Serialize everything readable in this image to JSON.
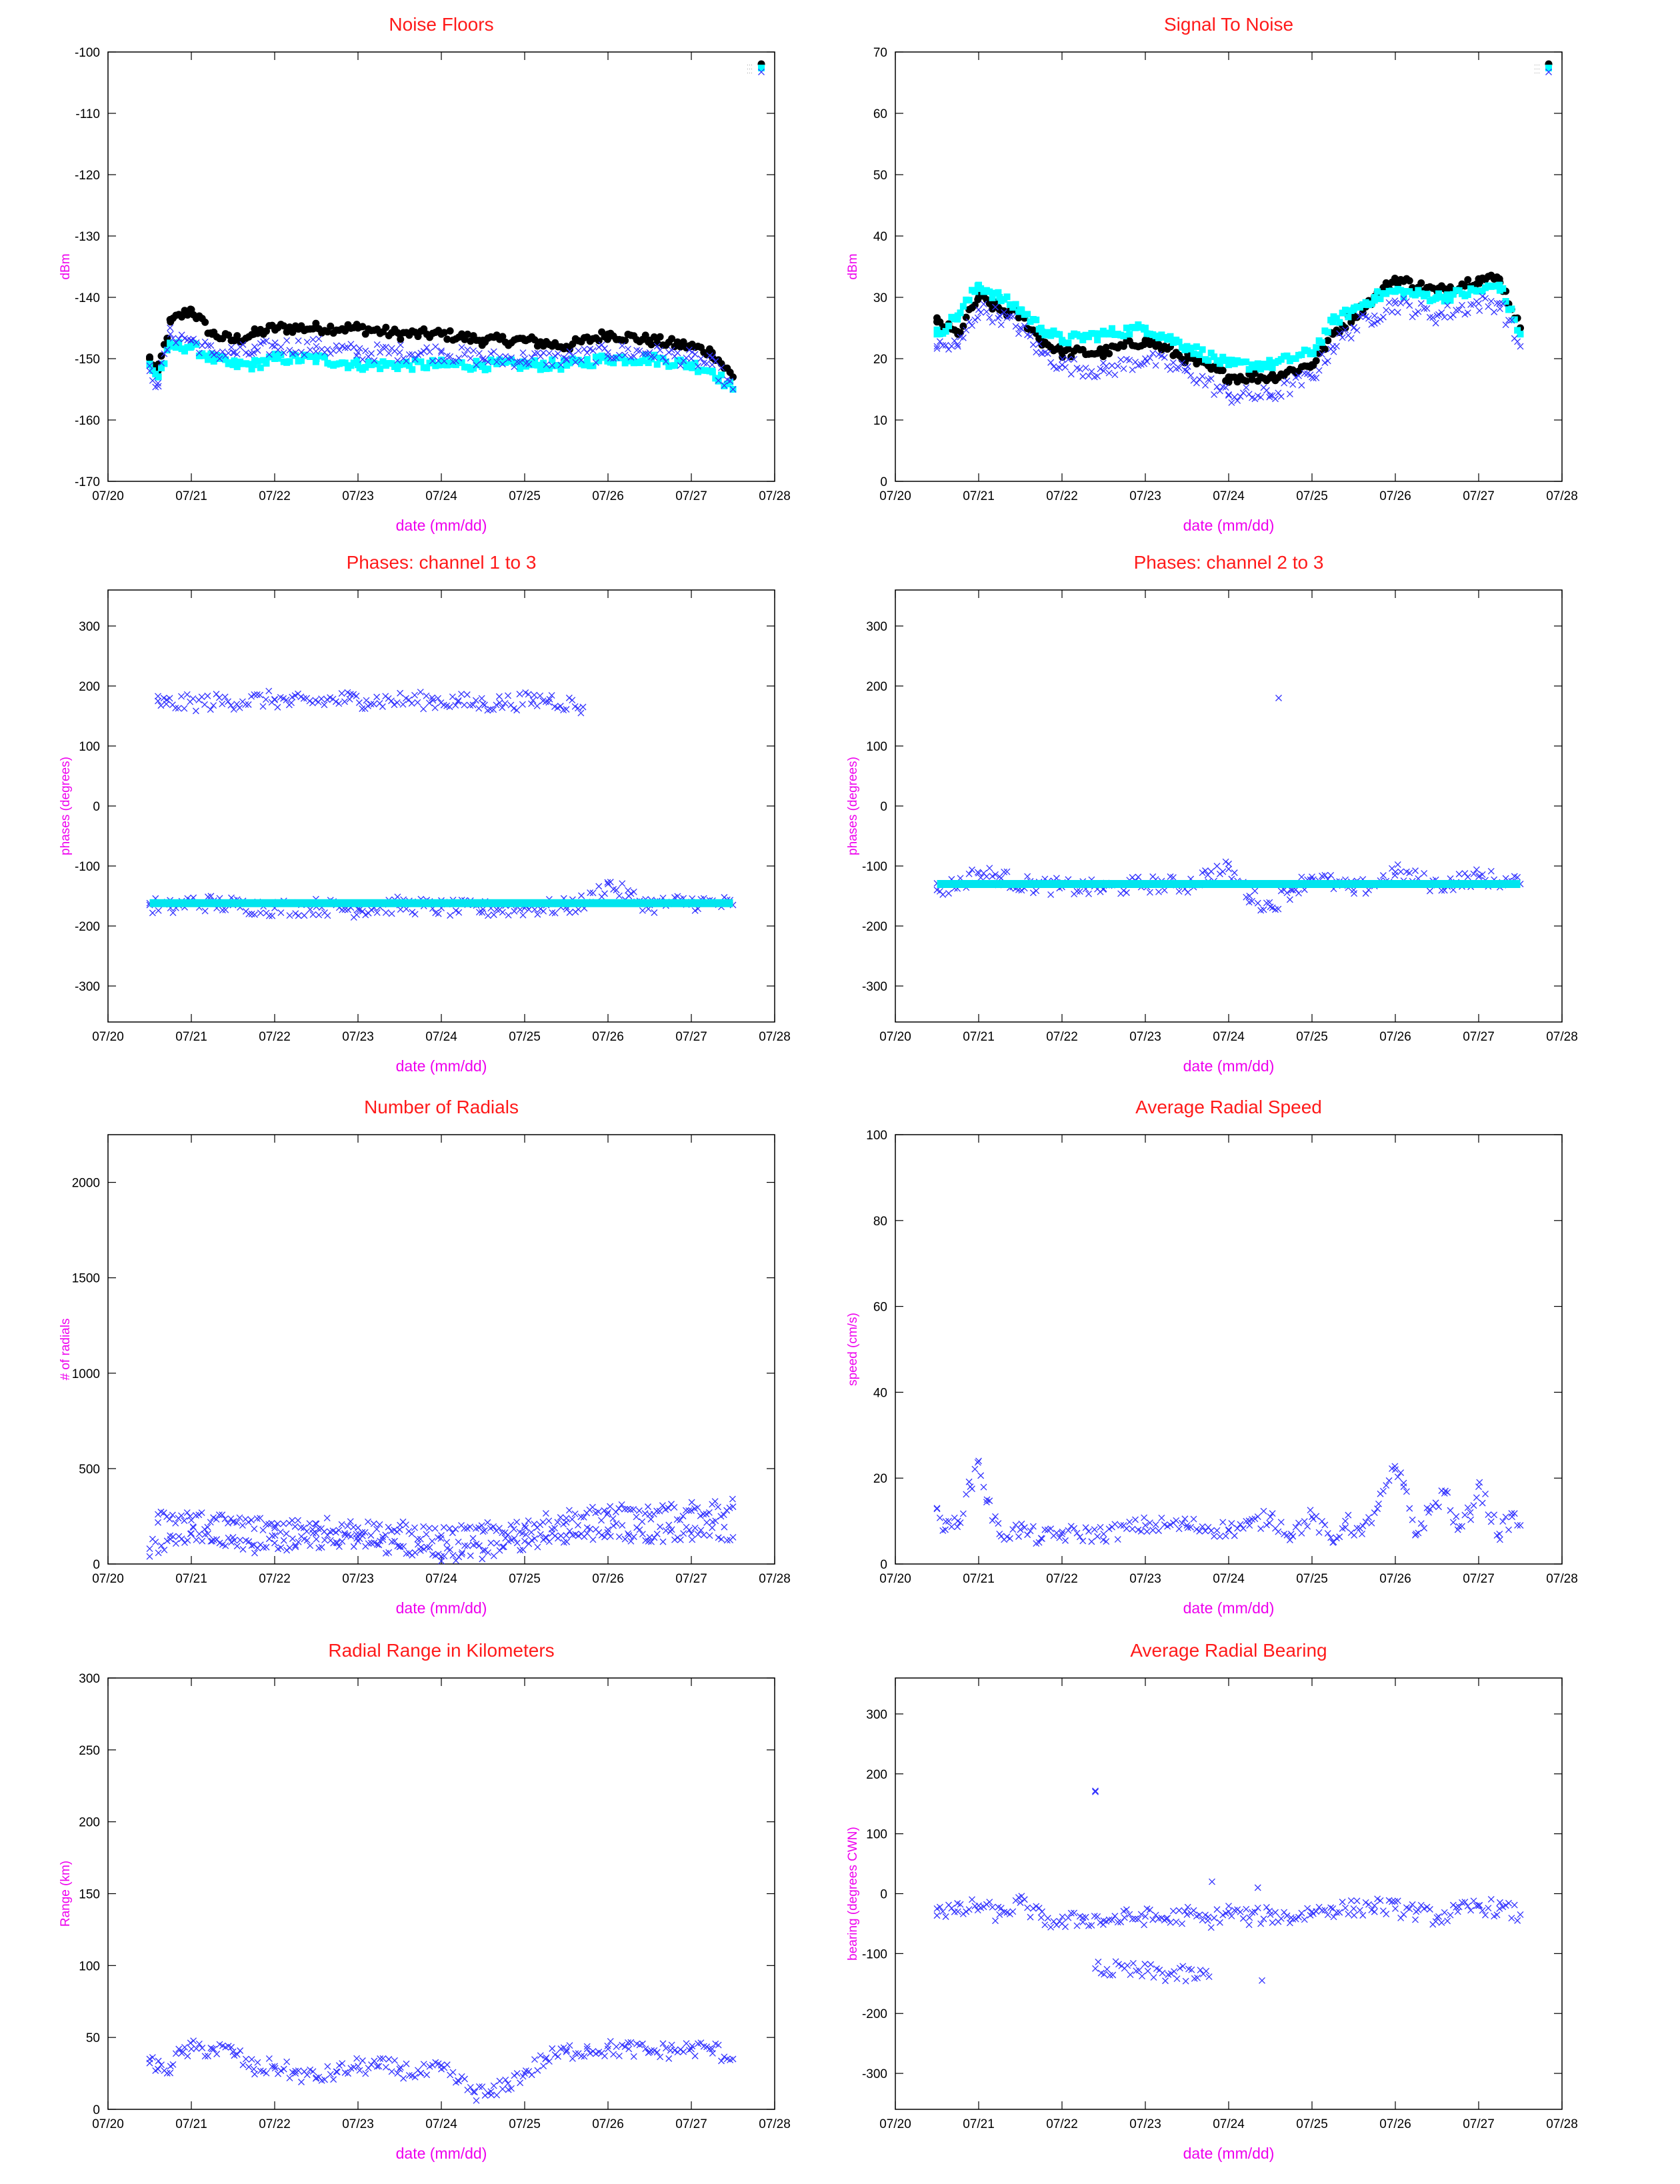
{
  "colors": {
    "title": "#ff1a1a",
    "axis_label": "#ee00ee",
    "channel_1": "#000000",
    "channel_2": "#00ffff",
    "channel_3": "#3333ff",
    "series_x": "#3333ff",
    "series_cyan": "#00e5ee"
  },
  "chart_data": [
    {
      "id": "noise-floors",
      "type": "scatter",
      "title": "Noise Floors",
      "xlabel": "date (mm/dd)",
      "ylabel": "dBm",
      "xticks": [
        "07/20",
        "07/21",
        "07/22",
        "07/23",
        "07/24",
        "07/25",
        "07/26",
        "07/27",
        "07/28"
      ],
      "xlim": [
        0,
        8
      ],
      "ylim": [
        -170,
        -100
      ],
      "yticks": [
        -100,
        -110,
        -120,
        -130,
        -140,
        -150,
        -160,
        -170
      ],
      "grid": false,
      "legend": "top-right",
      "series": [
        {
          "color": "#000000",
          "marker": "dot",
          "x": [
            0.5,
            0.6,
            0.75,
            1.0,
            1.25,
            1.5,
            1.75,
            2.0,
            2.5,
            3.0,
            3.5,
            4.0,
            4.5,
            5.0,
            5.5,
            6.0,
            6.5,
            7.0,
            7.25,
            7.5
          ],
          "y": [
            -150,
            -152,
            -144,
            -142,
            -146,
            -147,
            -146,
            -145,
            -145,
            -145,
            -146,
            -146,
            -147,
            -147,
            -148,
            -146,
            -147,
            -148,
            -149,
            -153
          ]
        },
        {
          "color": "#00ffff",
          "marker": "square",
          "x": [
            0.5,
            0.6,
            0.75,
            1.0,
            1.25,
            1.5,
            1.75,
            2.0,
            2.5,
            3.0,
            3.5,
            4.0,
            4.5,
            5.0,
            5.5,
            6.0,
            6.5,
            7.0,
            7.25,
            7.5
          ],
          "y": [
            -151,
            -153,
            -148,
            -148,
            -150,
            -151,
            -151,
            -150,
            -150,
            -151,
            -151,
            -151,
            -151,
            -151,
            -151,
            -150,
            -150,
            -151,
            -152,
            -155
          ]
        },
        {
          "color": "#3333ff",
          "marker": "x",
          "x": [
            0.5,
            0.6,
            0.75,
            1.0,
            1.25,
            1.5,
            1.75,
            2.0,
            2.5,
            3.0,
            3.5,
            4.0,
            4.5,
            5.0,
            5.5,
            6.0,
            6.5,
            7.0,
            7.25,
            7.5
          ],
          "y": [
            -152,
            -154,
            -146,
            -147,
            -149,
            -149,
            -149,
            -148,
            -148,
            -149,
            -149,
            -149,
            -150,
            -150,
            -150,
            -149,
            -149,
            -150,
            -151,
            -155
          ]
        }
      ]
    },
    {
      "id": "signal-to-noise",
      "type": "scatter",
      "title": "Signal To Noise",
      "xlabel": "date (mm/dd)",
      "ylabel": "dBm",
      "xticks": [
        "07/20",
        "07/21",
        "07/22",
        "07/23",
        "07/24",
        "07/25",
        "07/26",
        "07/27",
        "07/28"
      ],
      "xlim": [
        0,
        8
      ],
      "ylim": [
        0,
        70
      ],
      "yticks": [
        70,
        60,
        50,
        40,
        30,
        20,
        10,
        0
      ],
      "grid": false,
      "legend": "top-right",
      "series": [
        {
          "color": "#000000",
          "marker": "dot",
          "x": [
            0.5,
            0.75,
            1.0,
            1.25,
            1.5,
            1.75,
            2.0,
            2.5,
            3.0,
            3.5,
            4.0,
            4.5,
            5.0,
            5.25,
            5.5,
            5.75,
            6.0,
            6.5,
            7.0,
            7.25,
            7.5
          ],
          "y": [
            26,
            24,
            30,
            28,
            27,
            23,
            21,
            21,
            23,
            20,
            17,
            17,
            19,
            24,
            27,
            30,
            33,
            31,
            33,
            33,
            25
          ]
        },
        {
          "color": "#00ffff",
          "marker": "square",
          "x": [
            0.5,
            0.75,
            1.0,
            1.25,
            1.5,
            1.75,
            2.0,
            2.5,
            3.0,
            3.5,
            4.0,
            4.5,
            5.0,
            5.25,
            5.5,
            5.75,
            6.0,
            6.5,
            7.0,
            7.25,
            7.5
          ],
          "y": [
            24,
            27,
            32,
            30,
            28,
            25,
            23,
            24,
            25,
            22,
            19,
            19,
            21,
            26,
            28,
            30,
            31,
            30,
            31,
            32,
            24
          ]
        },
        {
          "color": "#3333ff",
          "marker": "x",
          "x": [
            0.5,
            0.75,
            1.0,
            1.25,
            1.5,
            1.75,
            2.0,
            2.5,
            3.0,
            3.5,
            4.0,
            4.5,
            5.0,
            5.25,
            5.5,
            5.75,
            6.0,
            6.5,
            7.0,
            7.25,
            7.5
          ],
          "y": [
            22,
            22,
            28,
            27,
            25,
            21,
            19,
            18,
            20,
            18,
            14,
            14,
            17,
            22,
            25,
            27,
            29,
            27,
            29,
            29,
            22
          ]
        }
      ]
    },
    {
      "id": "phases-1-3",
      "type": "scatter",
      "title": "Phases: channel 1 to 3",
      "xlabel": "date (mm/dd)",
      "ylabel": "phases (degrees)",
      "xticks": [
        "07/20",
        "07/21",
        "07/22",
        "07/23",
        "07/24",
        "07/25",
        "07/26",
        "07/27",
        "07/28"
      ],
      "xlim": [
        0,
        8
      ],
      "ylim": [
        -360,
        360
      ],
      "yticks": [
        300,
        200,
        100,
        0,
        -100,
        -200,
        -300
      ],
      "grid": false,
      "series": [
        {
          "color": "#3333ff",
          "marker": "x",
          "x": [
            0.5,
            0.75,
            1.0,
            1.5,
            2.0,
            2.5,
            3.0,
            3.5,
            4.0,
            4.5,
            5.0,
            5.5,
            5.75,
            6.0,
            6.25,
            6.5,
            7.0,
            7.5
          ],
          "y": [
            -165,
            -170,
            -160,
            -165,
            -170,
            -168,
            -172,
            -165,
            -170,
            -172,
            -170,
            -168,
            -160,
            -130,
            -150,
            -165,
            -160,
            -165
          ]
        },
        {
          "color": "#3333ff",
          "marker": "x",
          "x": [
            0.6,
            0.7,
            2.0,
            2.2,
            2.9,
            3.1,
            3.9,
            4.2,
            4.5,
            4.7,
            5.1,
            5.3,
            5.7
          ],
          "y": [
            175,
            170,
            178,
            172,
            178,
            176,
            176,
            174,
            170,
            172,
            176,
            178,
            165
          ]
        },
        {
          "color": "#00e5ee",
          "marker": "line",
          "x": [
            0.5,
            7.5
          ],
          "y": [
            -162,
            -162
          ]
        }
      ]
    },
    {
      "id": "phases-2-3",
      "type": "scatter",
      "title": "Phases: channel 2 to 3",
      "xlabel": "date (mm/dd)",
      "ylabel": "phases (degrees)",
      "xticks": [
        "07/20",
        "07/21",
        "07/22",
        "07/23",
        "07/24",
        "07/25",
        "07/26",
        "07/27",
        "07/28"
      ],
      "xlim": [
        0,
        8
      ],
      "ylim": [
        -360,
        360
      ],
      "yticks": [
        300,
        200,
        100,
        0,
        -100,
        -200,
        -300
      ],
      "grid": false,
      "series": [
        {
          "color": "#3333ff",
          "marker": "x",
          "x": [
            0.5,
            0.75,
            1.0,
            1.25,
            1.5,
            2.0,
            2.5,
            3.0,
            3.5,
            3.75,
            4.0,
            4.25,
            4.5,
            4.75,
            5.0,
            5.5,
            5.75,
            6.0,
            6.5,
            7.0,
            7.5
          ],
          "y": [
            -140,
            -130,
            -112,
            -118,
            -130,
            -135,
            -138,
            -130,
            -132,
            -115,
            -105,
            -150,
            -168,
            -140,
            -118,
            -140,
            -130,
            -110,
            -132,
            -118,
            -130
          ]
        },
        {
          "color": "#3333ff",
          "marker": "x",
          "x": [
            4.6
          ],
          "y": [
            180
          ]
        },
        {
          "color": "#00e5ee",
          "marker": "line",
          "x": [
            0.5,
            7.5
          ],
          "y": [
            -130,
            -130
          ]
        }
      ]
    },
    {
      "id": "number-of-radials",
      "type": "scatter",
      "title": "Number of Radials",
      "xlabel": "date (mm/dd)",
      "ylabel": "# of radials",
      "xticks": [
        "07/20",
        "07/21",
        "07/22",
        "07/23",
        "07/24",
        "07/25",
        "07/26",
        "07/27",
        "07/28"
      ],
      "xlim": [
        0,
        8
      ],
      "ylim": [
        0,
        2250
      ],
      "yticks": [
        2000,
        1500,
        1000,
        500,
        0
      ],
      "grid": false,
      "series": [
        {
          "color": "#3333ff",
          "marker": "x",
          "x": [
            0.5,
            0.75,
            1.0,
            1.25,
            1.5,
            1.75,
            2.0,
            2.25,
            2.5,
            2.75,
            3.0,
            3.25,
            3.5,
            3.75,
            4.0,
            4.25,
            4.5,
            4.75,
            5.0,
            5.25,
            5.5,
            5.75,
            6.0,
            6.25,
            6.5,
            6.75,
            7.0,
            7.25,
            7.5
          ],
          "y": [
            80,
            130,
            160,
            120,
            140,
            100,
            110,
            90,
            130,
            110,
            120,
            100,
            90,
            70,
            40,
            60,
            70,
            90,
            120,
            140,
            150,
            160,
            180,
            150,
            140,
            170,
            160,
            190,
            140
          ]
        },
        {
          "color": "#3333ff",
          "marker": "x",
          "x": [
            0.6,
            1.0,
            1.5,
            2.0,
            2.5,
            3.0,
            3.5,
            4.0,
            4.5,
            5.0,
            5.5,
            6.0,
            6.5,
            7.0,
            7.5
          ],
          "y": [
            260,
            230,
            220,
            200,
            210,
            190,
            180,
            150,
            170,
            200,
            240,
            270,
            260,
            280,
            300
          ]
        }
      ]
    },
    {
      "id": "average-radial-speed",
      "type": "scatter",
      "title": "Average Radial Speed",
      "xlabel": "date (mm/dd)",
      "ylabel": "speed (cm/s)",
      "xticks": [
        "07/20",
        "07/21",
        "07/22",
        "07/23",
        "07/24",
        "07/25",
        "07/26",
        "07/27",
        "07/28"
      ],
      "xlim": [
        0,
        8
      ],
      "ylim": [
        0,
        100
      ],
      "yticks": [
        100,
        80,
        60,
        40,
        20,
        0
      ],
      "grid": false,
      "series": [
        {
          "color": "#3333ff",
          "marker": "x",
          "x": [
            0.5,
            0.6,
            0.75,
            0.9,
            1.0,
            1.1,
            1.25,
            1.5,
            1.75,
            2.0,
            2.5,
            3.0,
            3.5,
            4.0,
            4.25,
            4.5,
            4.75,
            5.0,
            5.25,
            5.4,
            5.6,
            5.8,
            6.0,
            6.1,
            6.25,
            6.4,
            6.6,
            6.75,
            6.9,
            7.0,
            7.25,
            7.4,
            7.5
          ],
          "y": [
            13,
            8,
            10,
            18,
            24,
            15,
            7,
            8,
            6,
            7,
            7,
            9,
            9,
            8,
            9,
            11,
            7,
            11,
            5,
            10,
            7,
            14,
            22,
            18,
            7,
            12,
            17,
            8,
            12,
            18,
            7,
            11,
            9
          ]
        }
      ]
    },
    {
      "id": "radial-range",
      "type": "scatter",
      "title": "Radial Range in Kilometers",
      "xlabel": "date (mm/dd)",
      "ylabel": "Range (km)",
      "xticks": [
        "07/20",
        "07/21",
        "07/22",
        "07/23",
        "07/24",
        "07/25",
        "07/26",
        "07/27",
        "07/28"
      ],
      "xlim": [
        0,
        8
      ],
      "ylim": [
        0,
        300
      ],
      "yticks": [
        300,
        250,
        200,
        150,
        100,
        50,
        0
      ],
      "grid": false,
      "series": [
        {
          "color": "#3333ff",
          "marker": "x",
          "x": [
            0.5,
            0.6,
            0.75,
            0.9,
            1.0,
            1.25,
            1.5,
            1.75,
            2.0,
            2.25,
            2.5,
            2.75,
            3.0,
            3.25,
            3.5,
            3.75,
            4.0,
            4.2,
            4.4,
            4.6,
            4.8,
            5.0,
            5.25,
            5.5,
            5.75,
            6.0,
            6.25,
            6.5,
            6.75,
            7.0,
            7.25,
            7.5
          ],
          "y": [
            35,
            28,
            30,
            40,
            42,
            42,
            40,
            28,
            30,
            25,
            22,
            26,
            30,
            30,
            28,
            25,
            28,
            20,
            12,
            10,
            18,
            25,
            35,
            40,
            42,
            42,
            42,
            40,
            41,
            42,
            42,
            35
          ]
        }
      ]
    },
    {
      "id": "average-radial-bearing",
      "type": "scatter",
      "title": "Average Radial Bearing",
      "xlabel": "date (mm/dd)",
      "ylabel": "bearing (degrees CWN)",
      "xticks": [
        "07/20",
        "07/21",
        "07/22",
        "07/23",
        "07/24",
        "07/25",
        "07/26",
        "07/27",
        "07/28"
      ],
      "xlim": [
        0,
        8
      ],
      "ylim": [
        -360,
        360
      ],
      "yticks": [
        300,
        200,
        100,
        0,
        -100,
        -200,
        -300
      ],
      "grid": false,
      "series": [
        {
          "color": "#3333ff",
          "marker": "x",
          "x": [
            0.5,
            0.75,
            1.0,
            1.25,
            1.5,
            1.75,
            2.0,
            2.25,
            2.5,
            2.75,
            3.0,
            3.25,
            3.5,
            3.75,
            4.0,
            4.25,
            4.5,
            4.75,
            5.0,
            5.25,
            5.5,
            5.75,
            6.0,
            6.25,
            6.5,
            6.75,
            7.0,
            7.25,
            7.5
          ],
          "y": [
            -25,
            -30,
            -20,
            -35,
            -15,
            -40,
            -50,
            -40,
            -45,
            -40,
            -38,
            -42,
            -35,
            -45,
            -30,
            -40,
            -35,
            -40,
            -30,
            -25,
            -25,
            -20,
            -25,
            -30,
            -40,
            -30,
            -20,
            -25,
            -35
          ]
        },
        {
          "color": "#3333ff",
          "marker": "x",
          "x": [
            2.4,
            2.4,
            4.4,
            4.35,
            3.8
          ],
          "y": [
            170,
            -125,
            -145,
            10,
            20
          ]
        }
      ]
    }
  ]
}
